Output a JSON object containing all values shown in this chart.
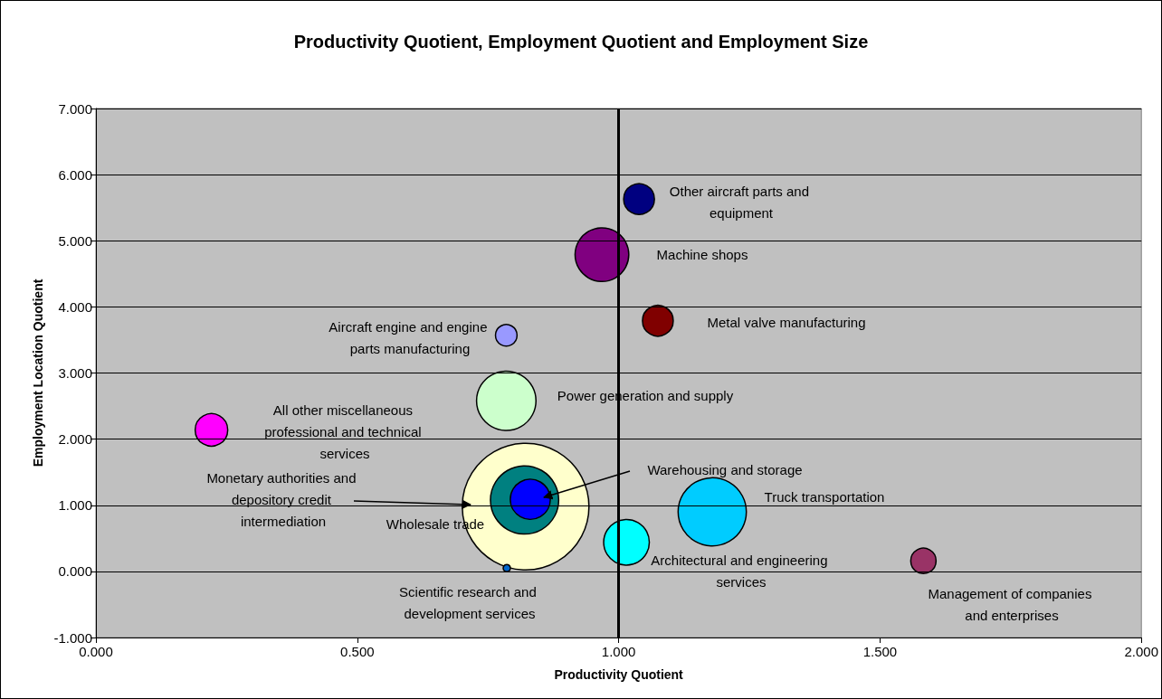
{
  "chart_data": {
    "type": "bubble",
    "title": "Productivity Quotient, Employment Quotient and Employment Size",
    "xlabel": "Productivity Quotient",
    "ylabel": "Employment Location Quotient",
    "xlim": [
      0,
      2
    ],
    "ylim": [
      -1,
      7
    ],
    "xticks": [
      {
        "value": 0,
        "label": "0.000"
      },
      {
        "value": 0.5,
        "label": "0.500"
      },
      {
        "value": 1,
        "label": "1.000"
      },
      {
        "value": 1.5,
        "label": "1.500"
      },
      {
        "value": 2,
        "label": "2.000"
      }
    ],
    "yticks": [
      {
        "value": -1,
        "label": "-1.000"
      },
      {
        "value": 0,
        "label": "0.000"
      },
      {
        "value": 1,
        "label": "1.000"
      },
      {
        "value": 2,
        "label": "2.000"
      },
      {
        "value": 3,
        "label": "3.000"
      },
      {
        "value": 4,
        "label": "4.000"
      },
      {
        "value": 5,
        "label": "5.000"
      },
      {
        "value": 6,
        "label": "6.000"
      },
      {
        "value": 7,
        "label": "7.000"
      }
    ],
    "grid": "y",
    "legend": false,
    "ref_lines": [
      {
        "axis": "x",
        "value": 1
      }
    ],
    "series": [
      {
        "name": "Monetary authorities and depository credit intermediation",
        "color": "#ffffcc",
        "x": [
          0.822
        ],
        "values": [
          0.98
        ],
        "sizes": [
          1
        ]
      },
      {
        "name": "Wholesale trade",
        "color": "#008080",
        "x": [
          0.82
        ],
        "values": [
          1.08
        ],
        "sizes": [
          0.29
        ]
      },
      {
        "name": "Warehousing and storage",
        "color": "#0000ff",
        "x": [
          0.831
        ],
        "values": [
          1.09
        ],
        "sizes": [
          0.1
        ]
      },
      {
        "name": "Truck transportation",
        "color": "#00ccff",
        "x": [
          1.179
        ],
        "values": [
          0.9
        ],
        "sizes": [
          0.29
        ]
      },
      {
        "name": "Power generation and supply",
        "color": "#ccffcc",
        "x": [
          0.785
        ],
        "values": [
          2.58
        ],
        "sizes": [
          0.22
        ]
      },
      {
        "name": "Machine shops",
        "color": "#800080",
        "x": [
          0.968
        ],
        "values": [
          4.79
        ],
        "sizes": [
          0.18
        ]
      },
      {
        "name": "Architectural and engineering services",
        "color": "#00ffff",
        "x": [
          1.015
        ],
        "values": [
          0.44
        ],
        "sizes": [
          0.13
        ]
      },
      {
        "name": "All other miscellaneous professional and technical services",
        "color": "#ff00ff",
        "x": [
          0.221
        ],
        "values": [
          2.14
        ],
        "sizes": [
          0.066
        ]
      },
      {
        "name": "Other aircraft parts and equipment",
        "color": "#000080",
        "x": [
          1.039
        ],
        "values": [
          5.63
        ],
        "sizes": [
          0.059
        ]
      },
      {
        "name": "Metal valve manufacturing",
        "color": "#800000",
        "x": [
          1.075
        ],
        "values": [
          3.79
        ],
        "sizes": [
          0.059
        ]
      },
      {
        "name": "Management of companies and enterprises",
        "color": "#993366",
        "x": [
          1.583
        ],
        "values": [
          0.16
        ],
        "sizes": [
          0.04
        ]
      },
      {
        "name": "Aircraft engine and engine parts manufacturing",
        "color": "#9999ff",
        "x": [
          0.785
        ],
        "values": [
          3.57
        ],
        "sizes": [
          0.029
        ]
      },
      {
        "name": "Scientific research and development services",
        "color": "#0066cc",
        "x": [
          0.786
        ],
        "values": [
          0.05
        ],
        "sizes": [
          0.0033
        ]
      }
    ]
  }
}
